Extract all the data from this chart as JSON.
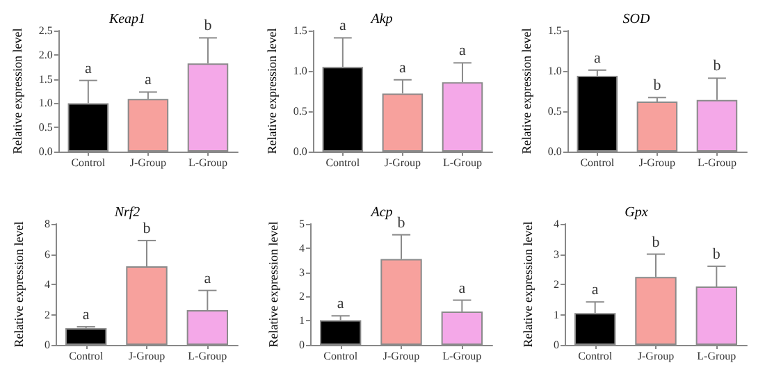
{
  "chart_data": [
    {
      "type": "bar",
      "title": "Keap1",
      "ylabel": "Relative expression level",
      "categories": [
        "Control",
        "J-Group",
        "L-Group"
      ],
      "values": [
        1.0,
        1.09,
        1.82
      ],
      "colors": [
        "#000000",
        "#f7a19d",
        "#f4a8e8"
      ],
      "errors": [
        [
          1.0,
          1.47
        ],
        [
          1.09,
          1.23
        ],
        [
          1.82,
          2.35
        ]
      ],
      "ylim": [
        0,
        2.5
      ],
      "yticks": [
        {
          "value": 0,
          "label": "0.0"
        },
        {
          "value": 0.5,
          "label": "0.5"
        },
        {
          "value": 1,
          "label": "1.0"
        },
        {
          "value": 1.5,
          "label": "1.5"
        },
        {
          "value": 2,
          "label": "2.0"
        },
        {
          "value": 2.5,
          "label": "2.5"
        }
      ],
      "annotations": [
        {
          "text": "a",
          "x": "Control",
          "y": 1.47
        },
        {
          "text": "a",
          "x": "J-Group",
          "y": 1.23
        },
        {
          "text": "b",
          "x": "L-Group",
          "y": 2.35
        }
      ]
    },
    {
      "type": "bar",
      "title": "Akp",
      "ylabel": "Relative expression level",
      "categories": [
        "Control",
        "J-Group",
        "L-Group"
      ],
      "values": [
        1.05,
        0.72,
        0.86
      ],
      "colors": [
        "#000000",
        "#f7a19d",
        "#f4a8e8"
      ],
      "errors": [
        [
          1.05,
          1.41
        ],
        [
          0.72,
          0.89
        ],
        [
          0.86,
          1.1
        ]
      ],
      "ylim": [
        0,
        1.5
      ],
      "yticks": [
        {
          "value": 0,
          "label": "0.0"
        },
        {
          "value": 0.5,
          "label": "0.5"
        },
        {
          "value": 1,
          "label": "1.0"
        },
        {
          "value": 1.5,
          "label": "1.5"
        }
      ],
      "annotations": [
        {
          "text": "a",
          "x": "Control",
          "y": 1.41
        },
        {
          "text": "a",
          "x": "J-Group",
          "y": 0.89
        },
        {
          "text": "a",
          "x": "L-Group",
          "y": 1.1
        }
      ]
    },
    {
      "type": "bar",
      "title": "SOD",
      "ylabel": "Relative expression level",
      "categories": [
        "Control",
        "J-Group",
        "L-Group"
      ],
      "values": [
        0.94,
        0.62,
        0.64
      ],
      "colors": [
        "#000000",
        "#f7a19d",
        "#f4a8e8"
      ],
      "errors": [
        [
          0.94,
          1.01
        ],
        [
          0.62,
          0.67
        ],
        [
          0.64,
          0.91
        ]
      ],
      "ylim": [
        0,
        1.5
      ],
      "yticks": [
        {
          "value": 0,
          "label": "0.0"
        },
        {
          "value": 0.5,
          "label": "0.5"
        },
        {
          "value": 1,
          "label": "1.0"
        },
        {
          "value": 1.5,
          "label": "1.5"
        }
      ],
      "annotations": [
        {
          "text": "a",
          "x": "Control",
          "y": 1.01
        },
        {
          "text": "b",
          "x": "J-Group",
          "y": 0.67
        },
        {
          "text": "b",
          "x": "L-Group",
          "y": 0.91
        }
      ]
    },
    {
      "type": "bar",
      "title": "Nrf2",
      "ylabel": "Relative expression level",
      "categories": [
        "Control",
        "J-Group",
        "L-Group"
      ],
      "values": [
        1.1,
        5.2,
        2.3
      ],
      "colors": [
        "#000000",
        "#f7a19d",
        "#f4a8e8"
      ],
      "errors": [
        [
          1.1,
          1.2
        ],
        [
          5.2,
          6.9
        ],
        [
          2.3,
          3.6
        ]
      ],
      "ylim": [
        0,
        8
      ],
      "yticks": [
        0,
        2,
        4,
        6,
        8
      ],
      "annotations": [
        {
          "text": "a",
          "x": "Control",
          "y": 1.2
        },
        {
          "text": "b",
          "x": "J-Group",
          "y": 6.9
        },
        {
          "text": "a",
          "x": "L-Group",
          "y": 3.6
        }
      ]
    },
    {
      "type": "bar",
      "title": "Acp",
      "ylabel": "Relative expression level",
      "categories": [
        "Control",
        "J-Group",
        "L-Group"
      ],
      "values": [
        1.02,
        3.55,
        1.38
      ],
      "colors": [
        "#000000",
        "#f7a19d",
        "#f4a8e8"
      ],
      "errors": [
        [
          1.02,
          1.2
        ],
        [
          3.55,
          4.55
        ],
        [
          1.38,
          1.85
        ]
      ],
      "ylim": [
        0,
        5
      ],
      "yticks": [
        0,
        1,
        2,
        3,
        4,
        5
      ],
      "annotations": [
        {
          "text": "a",
          "x": "Control",
          "y": 1.2
        },
        {
          "text": "b",
          "x": "J-Group",
          "y": 4.55
        },
        {
          "text": "a",
          "x": "L-Group",
          "y": 1.85
        }
      ]
    },
    {
      "type": "bar",
      "title": "Gpx",
      "ylabel": "Relative expression level",
      "categories": [
        "Control",
        "J-Group",
        "L-Group"
      ],
      "values": [
        1.05,
        2.25,
        1.93
      ],
      "colors": [
        "#000000",
        "#f7a19d",
        "#f4a8e8"
      ],
      "errors": [
        [
          1.05,
          1.42
        ],
        [
          2.25,
          3.0
        ],
        [
          1.93,
          2.6
        ]
      ],
      "ylim": [
        0,
        4
      ],
      "yticks": [
        0,
        1,
        2,
        3,
        4
      ],
      "annotations": [
        {
          "text": "a",
          "x": "Control",
          "y": 1.42
        },
        {
          "text": "b",
          "x": "J-Group",
          "y": 3.0
        },
        {
          "text": "b",
          "x": "L-Group",
          "y": 2.6
        }
      ]
    }
  ]
}
